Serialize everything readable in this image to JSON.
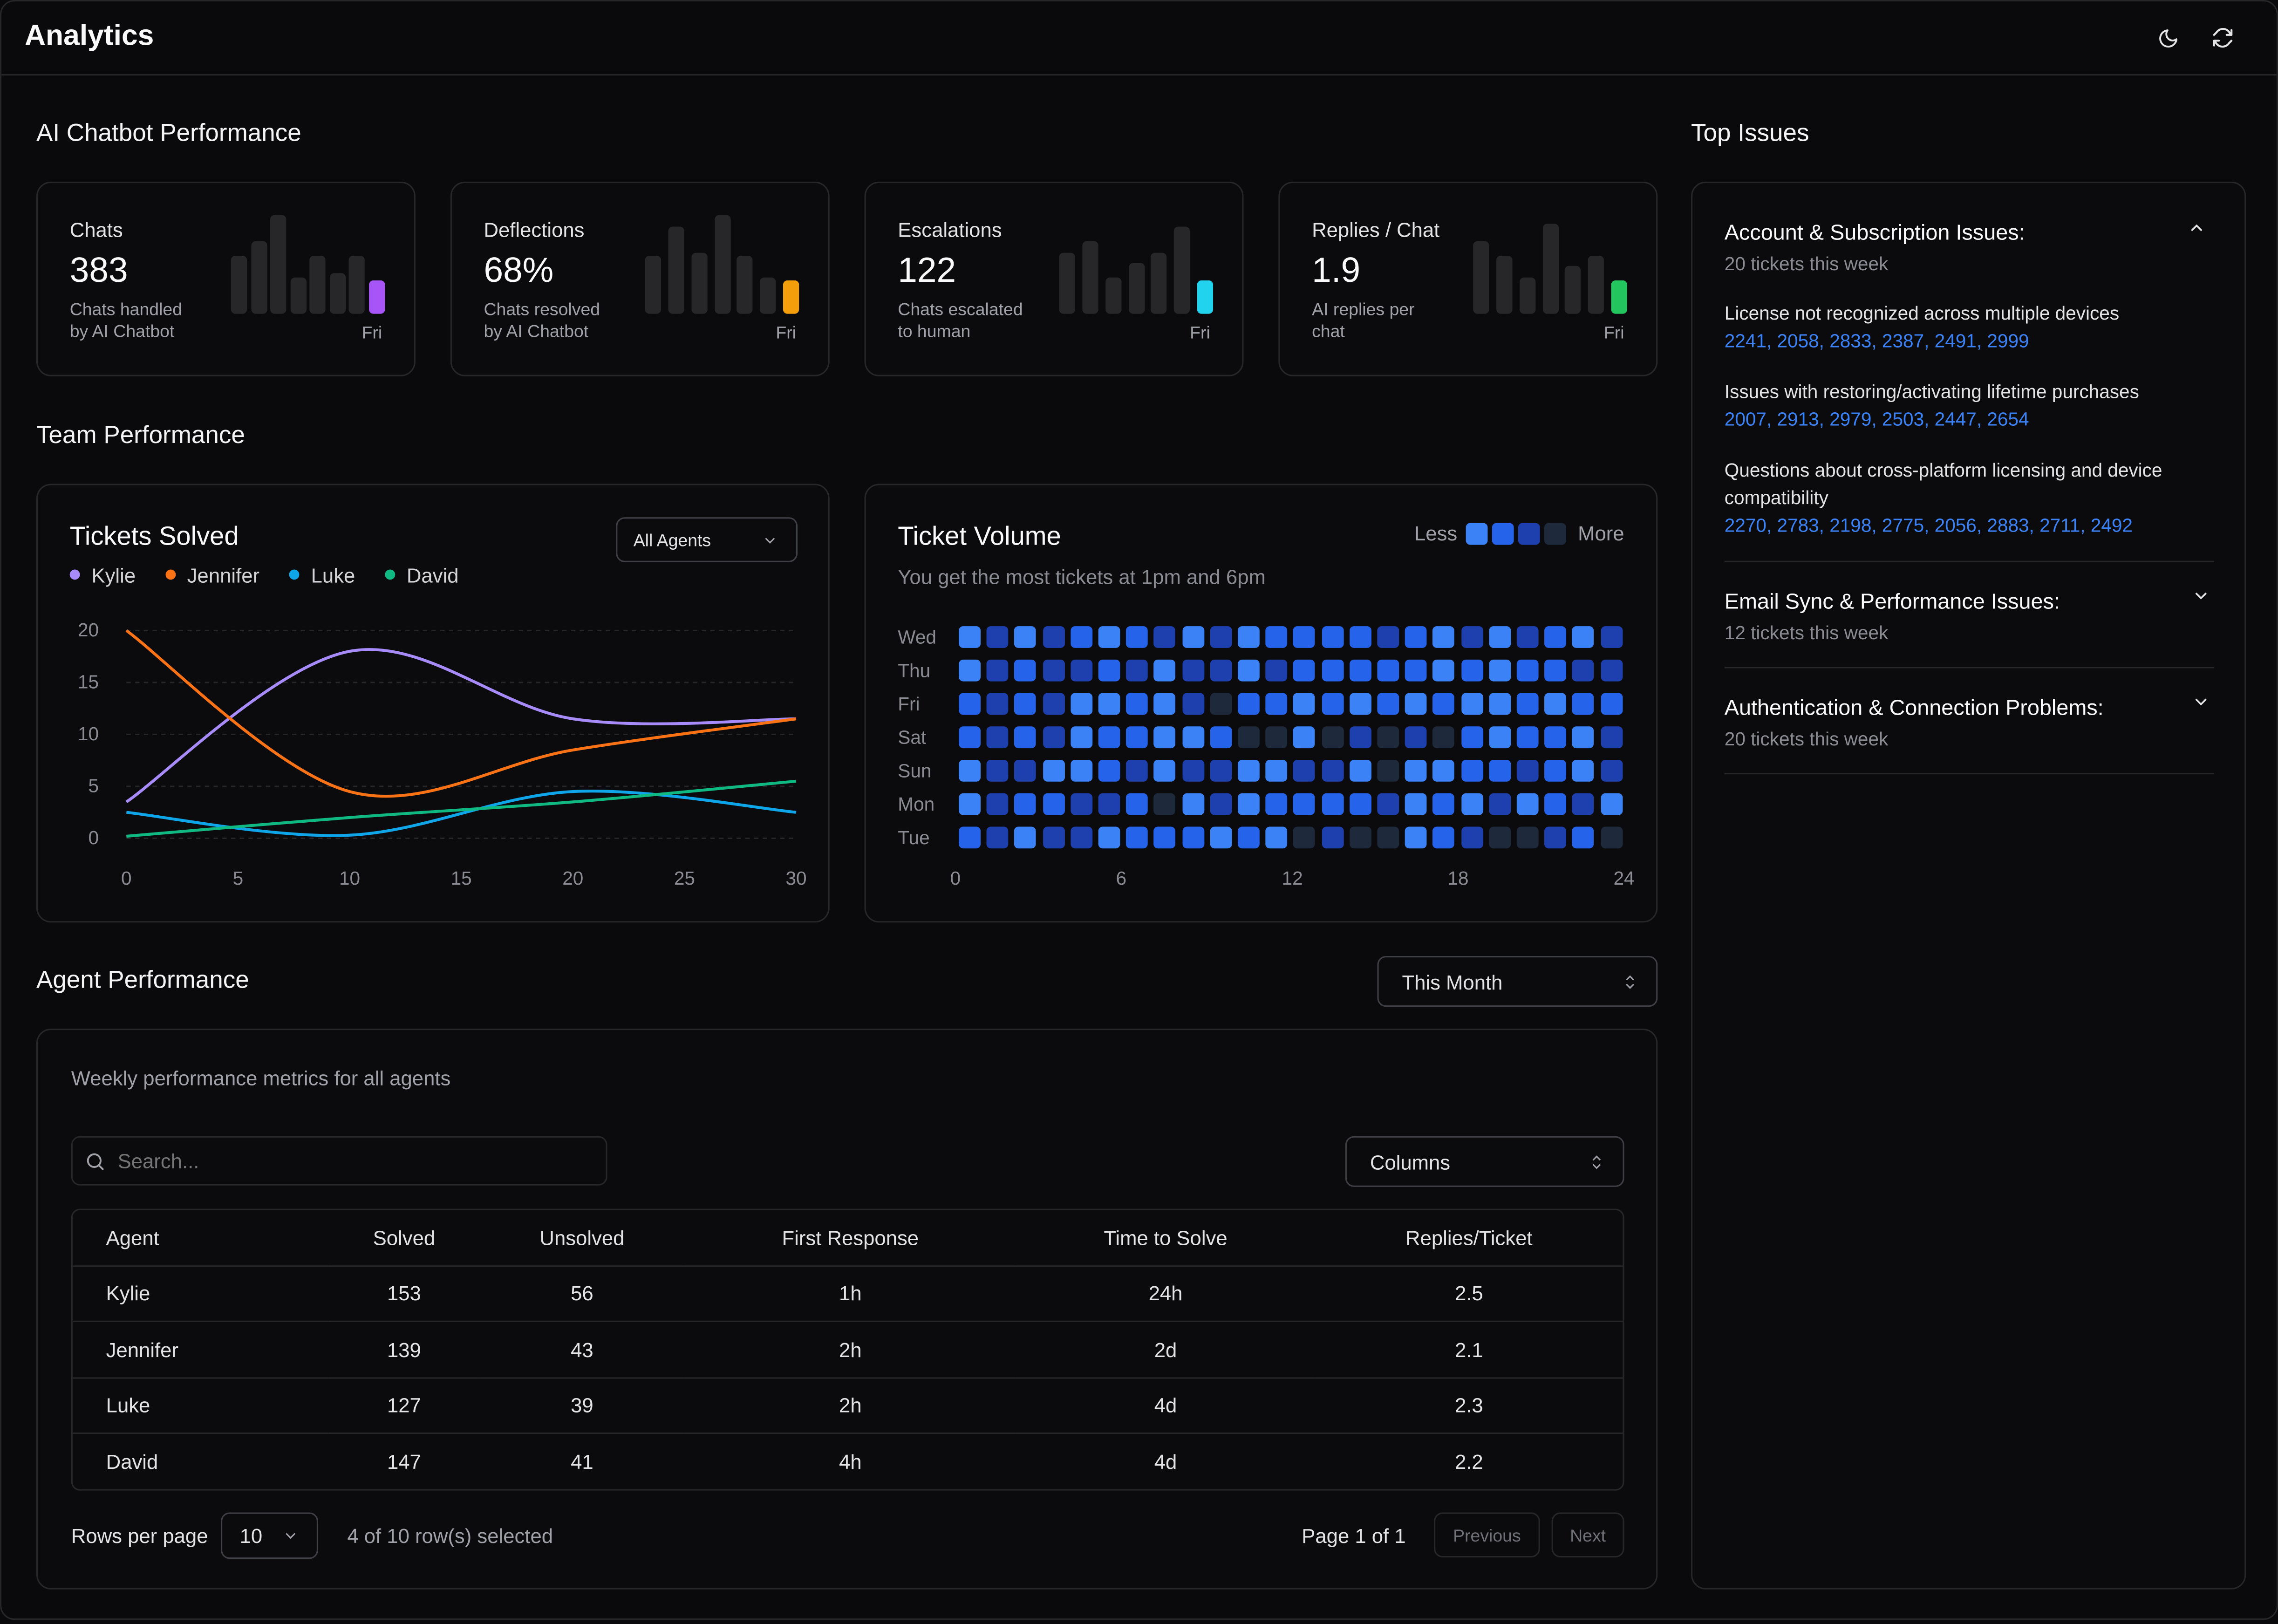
{
  "app": {
    "title": "Analytics"
  },
  "header": {
    "theme_icon": "moon-icon",
    "refresh_icon": "refresh-icon"
  },
  "chatbot": {
    "section_title": "AI Chatbot Performance",
    "kpis": [
      {
        "label": "Chats",
        "value": "383",
        "desc_line1": "Chats handled",
        "desc_line2": "by AI Chatbot",
        "day": "Fri",
        "accent": "#a855f7",
        "bars": [
          40,
          50,
          68,
          25,
          40,
          28,
          40,
          23
        ]
      },
      {
        "label": "Deflections",
        "value": "68%",
        "desc_line1": "Chats resolved",
        "desc_line2": "by AI Chatbot",
        "day": "Fri",
        "accent": "#f59e0b",
        "bars": [
          40,
          60,
          42,
          68,
          40,
          25,
          23
        ]
      },
      {
        "label": "Escalations",
        "value": "122",
        "desc_line1": "Chats escalated",
        "desc_line2": "to human",
        "day": "Fri",
        "accent": "#22d3ee",
        "bars": [
          42,
          50,
          25,
          35,
          42,
          60,
          23
        ]
      },
      {
        "label": "Replies / Chat",
        "value": "1.9",
        "desc_line1": "AI replies per",
        "desc_line2": "chat",
        "day": "Fri",
        "accent": "#22c55e",
        "bars": [
          50,
          40,
          25,
          62,
          33,
          40,
          23
        ]
      }
    ]
  },
  "team": {
    "section_title": "Team Performance",
    "tickets_solved": {
      "title": "Tickets Solved",
      "filter": "All Agents",
      "legend": [
        {
          "name": "Kylie",
          "color": "#a78bfa"
        },
        {
          "name": "Jennifer",
          "color": "#f97316"
        },
        {
          "name": "Luke",
          "color": "#0ea5e9"
        },
        {
          "name": "David",
          "color": "#10b981"
        }
      ]
    },
    "ticket_volume": {
      "title": "Ticket Volume",
      "subtitle": "You get the most tickets at 1pm and 6pm",
      "legend_less": "Less",
      "legend_more": "More",
      "levels": [
        "#2563eb",
        "#3b82f6",
        "#1e40af",
        "#1e293b"
      ]
    }
  },
  "chart_data": [
    {
      "type": "line",
      "title": "Tickets Solved",
      "x": [
        0,
        10,
        20,
        30
      ],
      "xticks": [
        0,
        5,
        10,
        15,
        20,
        25,
        30
      ],
      "yticks": [
        0,
        5,
        10,
        15,
        20
      ],
      "ylim": [
        0,
        20
      ],
      "xlim": [
        0,
        30
      ],
      "series": [
        {
          "name": "Kylie",
          "color": "#a78bfa",
          "values": [
            3.5,
            18,
            11.5,
            11.5
          ]
        },
        {
          "name": "Jennifer",
          "color": "#f97316",
          "values": [
            20,
            4.5,
            8.5,
            11.5
          ]
        },
        {
          "name": "Luke",
          "color": "#0ea5e9",
          "values": [
            2.5,
            0.3,
            4.5,
            2.5
          ]
        },
        {
          "name": "David",
          "color": "#10b981",
          "values": [
            0.2,
            2,
            3.5,
            5.5
          ]
        }
      ]
    },
    {
      "type": "heatmap",
      "title": "Ticket Volume",
      "rows": [
        "Wed",
        "Thu",
        "Fri",
        "Sat",
        "Sun",
        "Mon",
        "Tue"
      ],
      "xticks": [
        0,
        6,
        12,
        18,
        24
      ],
      "cells": [
        [
          1,
          2,
          1,
          2,
          0,
          1,
          0,
          2,
          1,
          2,
          1,
          0,
          0,
          0,
          0,
          2,
          0,
          1,
          2,
          1,
          2,
          0,
          1,
          2
        ],
        [
          1,
          2,
          0,
          2,
          2,
          0,
          2,
          1,
          2,
          2,
          1,
          2,
          0,
          0,
          0,
          0,
          0,
          1,
          0,
          1,
          0,
          0,
          2,
          2
        ],
        [
          0,
          2,
          0,
          2,
          1,
          1,
          0,
          1,
          2,
          3,
          0,
          0,
          1,
          0,
          1,
          0,
          1,
          0,
          1,
          1,
          0,
          1,
          0,
          0
        ],
        [
          0,
          2,
          0,
          2,
          1,
          0,
          0,
          1,
          1,
          0,
          3,
          3,
          1,
          3,
          2,
          3,
          2,
          3,
          0,
          1,
          0,
          0,
          1,
          2
        ],
        [
          1,
          2,
          2,
          1,
          1,
          0,
          2,
          1,
          2,
          2,
          1,
          1,
          2,
          2,
          1,
          3,
          1,
          1,
          0,
          0,
          2,
          0,
          1,
          2
        ],
        [
          1,
          2,
          0,
          0,
          2,
          2,
          0,
          3,
          1,
          2,
          1,
          0,
          0,
          0,
          0,
          2,
          1,
          0,
          1,
          2,
          1,
          0,
          2,
          1
        ],
        [
          0,
          2,
          1,
          2,
          2,
          1,
          0,
          0,
          0,
          1,
          0,
          1,
          3,
          2,
          3,
          3,
          1,
          0,
          2,
          3,
          3,
          2,
          0,
          3
        ]
      ]
    }
  ],
  "agents": {
    "section_title": "Agent Performance",
    "period": "This Month",
    "subtitle": "Weekly performance metrics for all agents",
    "search_placeholder": "Search...",
    "columns_label": "Columns",
    "headers": [
      "Agent",
      "Solved",
      "Unsolved",
      "First Response",
      "Time to Solve",
      "Replies/Ticket"
    ],
    "rows": [
      [
        "Kylie",
        "153",
        "56",
        "1h",
        "24h",
        "2.5"
      ],
      [
        "Jennifer",
        "139",
        "43",
        "2h",
        "2d",
        "2.1"
      ],
      [
        "Luke",
        "127",
        "39",
        "2h",
        "4d",
        "2.3"
      ],
      [
        "David",
        "147",
        "41",
        "4h",
        "4d",
        "2.2"
      ]
    ],
    "rows_per_page_label": "Rows per page",
    "rows_per_page": "10",
    "selection": "4 of 10 row(s) selected",
    "page": "Page 1 of 1",
    "prev": "Previous",
    "next": "Next"
  },
  "issues": {
    "section_title": "Top Issues",
    "groups": [
      {
        "title": "Account & Subscription Issues:",
        "count": "20 tickets this week",
        "items": [
          {
            "text": "License not recognized across multiple devices",
            "ids": "2241, 2058, 2833, 2387, 2491, 2999"
          },
          {
            "text": "Issues with restoring/activating lifetime purchases",
            "ids": "2007, 2913, 2979, 2503, 2447, 2654"
          },
          {
            "text": "Questions about cross-platform licensing and device compatibility",
            "ids": "2270, 2783, 2198, 2775, 2056, 2883, 2711, 2492"
          }
        ]
      },
      {
        "title": "Email Sync & Performance Issues:",
        "count": "12 tickets this week"
      },
      {
        "title": "Authentication & Connection Problems:",
        "count": "20 tickets this week"
      }
    ]
  }
}
